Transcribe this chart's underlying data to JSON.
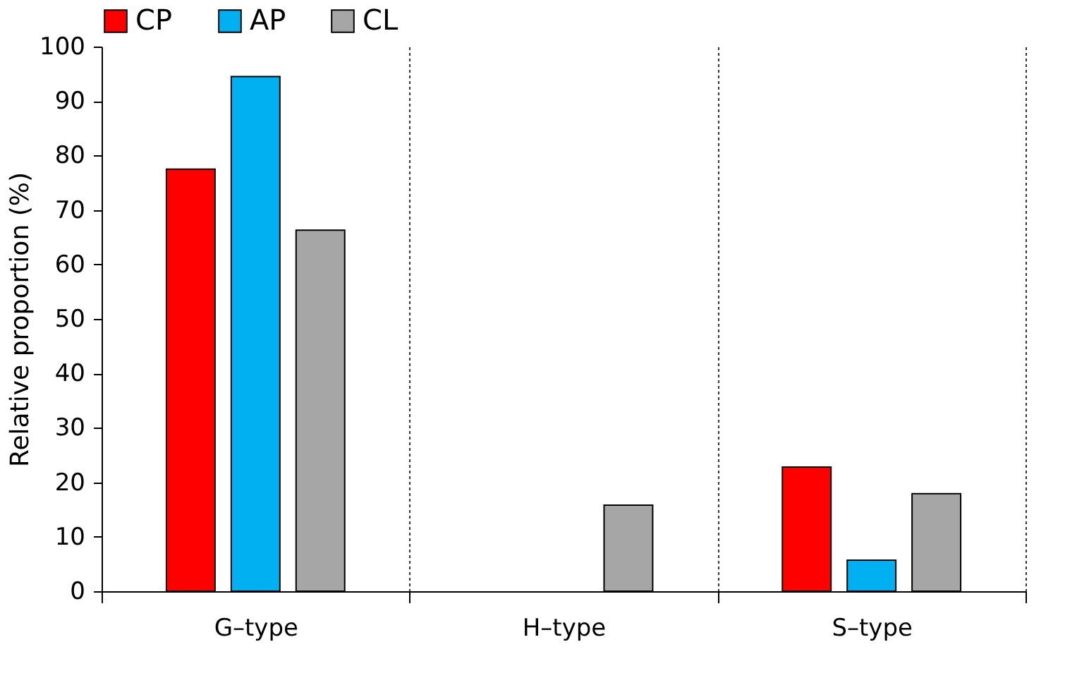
{
  "chart_data": {
    "type": "bar",
    "ylabel": "Relative proportion (%)",
    "categories": [
      "G–type",
      "H–type",
      "S–type"
    ],
    "series": [
      {
        "name": "CP",
        "color": "#ff0000",
        "values": [
          77.5,
          0,
          22.8
        ]
      },
      {
        "name": "AP",
        "color": "#00b0f0",
        "values": [
          94.5,
          0,
          5.7
        ]
      },
      {
        "name": "CL",
        "color": "#a6a6a6",
        "values": [
          66.3,
          15.8,
          17.9
        ]
      }
    ],
    "ylim": [
      0,
      100
    ],
    "yticks": [
      0,
      10,
      20,
      30,
      40,
      50,
      60,
      70,
      80,
      90,
      100
    ],
    "grid": "x",
    "legend": "top"
  }
}
